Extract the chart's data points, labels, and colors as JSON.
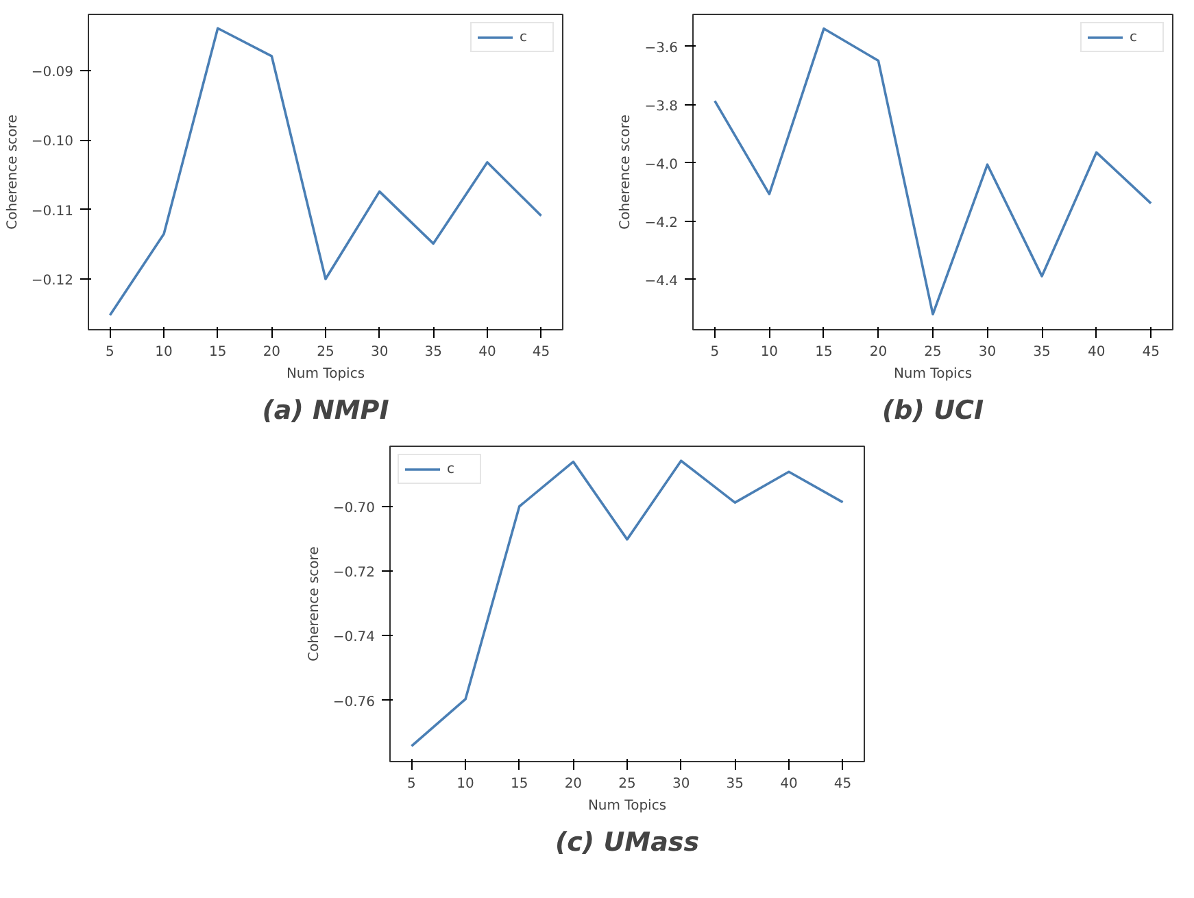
{
  "chart_data": [
    {
      "type": "line",
      "title": "(a) NMPI",
      "xlabel": "Num Topics",
      "ylabel": "Coherence score",
      "x": [
        5,
        10,
        15,
        20,
        25,
        30,
        35,
        40,
        45
      ],
      "xlim": [
        3,
        47
      ],
      "xticks": [
        5,
        10,
        15,
        20,
        25,
        30,
        35,
        40,
        45
      ],
      "ylim": [
        -0.1273,
        -0.0819
      ],
      "yticks": [
        {
          "value": -0.12,
          "label": "−0.12"
        },
        {
          "value": -0.11,
          "label": "−0.11"
        },
        {
          "value": -0.1,
          "label": "−0.10"
        },
        {
          "value": -0.09,
          "label": "−0.09"
        }
      ],
      "legend": "top right",
      "grid": false,
      "line_style": "solid",
      "marker": "none",
      "series": [
        {
          "name": "c",
          "color": "#4a7fb5",
          "values": [
            -0.1252,
            -0.1135,
            -0.0839,
            -0.0879,
            -0.12,
            -0.1074,
            -0.1149,
            -0.1032,
            -0.1109
          ]
        }
      ]
    },
    {
      "type": "line",
      "title": "(b) UCI",
      "xlabel": "Num Topics",
      "ylabel": "Coherence score",
      "x": [
        5,
        10,
        15,
        20,
        25,
        30,
        35,
        40,
        45
      ],
      "xlim": [
        3,
        47
      ],
      "xticks": [
        5,
        10,
        15,
        20,
        25,
        30,
        35,
        40,
        45
      ],
      "ylim": [
        -4.573,
        -3.49
      ],
      "yticks": [
        {
          "value": -4.4,
          "label": "−4.4"
        },
        {
          "value": -4.2,
          "label": "−4.2"
        },
        {
          "value": -4.0,
          "label": "−4.0"
        },
        {
          "value": -3.8,
          "label": "−3.8"
        },
        {
          "value": -3.6,
          "label": "−3.6"
        }
      ],
      "legend": "top right",
      "grid": false,
      "line_style": "solid",
      "marker": "none",
      "series": [
        {
          "name": "c",
          "color": "#4a7fb5",
          "values": [
            -3.787,
            -4.107,
            -3.539,
            -3.649,
            -4.52,
            -4.006,
            -4.389,
            -3.964,
            -4.139
          ]
        }
      ]
    },
    {
      "type": "line",
      "title": "(c) UMass",
      "xlabel": "Num Topics",
      "ylabel": "Coherence score",
      "x": [
        5,
        10,
        15,
        20,
        25,
        30,
        35,
        40,
        45
      ],
      "xlim": [
        3,
        47
      ],
      "xticks": [
        5,
        10,
        15,
        20,
        25,
        30,
        35,
        40,
        45
      ],
      "ylim": [
        -0.7789,
        -0.6814
      ],
      "yticks": [
        {
          "value": -0.76,
          "label": "−0.76"
        },
        {
          "value": -0.74,
          "label": "−0.74"
        },
        {
          "value": -0.72,
          "label": "−0.72"
        },
        {
          "value": -0.7,
          "label": "−0.70"
        }
      ],
      "legend": "top left",
      "grid": false,
      "line_style": "solid",
      "marker": "none",
      "series": [
        {
          "name": "c",
          "color": "#4a7fb5",
          "values": [
            -0.7741,
            -0.7596,
            -0.7,
            -0.6862,
            -0.7102,
            -0.6859,
            -0.6988,
            -0.6893,
            -0.6987
          ]
        }
      ]
    }
  ]
}
